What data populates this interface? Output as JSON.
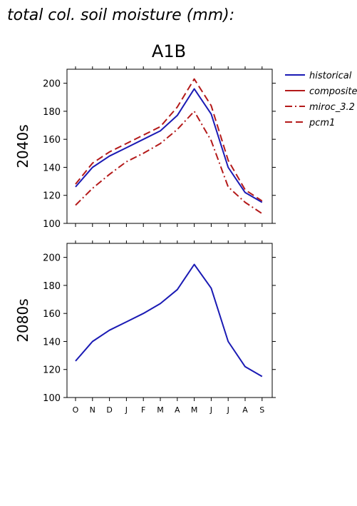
{
  "figure": {
    "title": "total col. soil moisture (mm):",
    "scenario": "A1B"
  },
  "legend": [
    {
      "name": "historical",
      "color": "#1a1ab4",
      "dash": "solid"
    },
    {
      "name": "composite",
      "color": "#b41a1a",
      "dash": "solid"
    },
    {
      "name": "miroc_3.2",
      "color": "#b41a1a",
      "dash": "dashdot"
    },
    {
      "name": "pcm1",
      "color": "#b41a1a",
      "dash": "dash"
    }
  ],
  "chart_data": [
    {
      "type": "line",
      "ylabel": "2040s",
      "ylim": [
        100,
        210
      ],
      "yticks": [
        100,
        120,
        140,
        160,
        180,
        200
      ],
      "categories": [
        "O",
        "N",
        "D",
        "J",
        "F",
        "M",
        "A",
        "M",
        "J",
        "J",
        "A",
        "S"
      ],
      "series": [
        {
          "name": "historical",
          "color": "#1a1ab4",
          "dash": "solid",
          "values": [
            126,
            140,
            148,
            154,
            160,
            166,
            177,
            196,
            178,
            140,
            122,
            115
          ]
        },
        {
          "name": "miroc_3.2",
          "color": "#b41a1a",
          "dash": "dashdot",
          "values": [
            113,
            125,
            135,
            144,
            150,
            157,
            167,
            180,
            159,
            126,
            115,
            107
          ]
        },
        {
          "name": "pcm1",
          "color": "#b41a1a",
          "dash": "dash",
          "values": [
            128,
            143,
            151,
            157,
            163,
            169,
            183,
            203,
            184,
            145,
            124,
            116
          ]
        }
      ]
    },
    {
      "type": "line",
      "ylabel": "2080s",
      "ylim": [
        100,
        210
      ],
      "yticks": [
        100,
        120,
        140,
        160,
        180,
        200
      ],
      "categories": [
        "O",
        "N",
        "D",
        "J",
        "F",
        "M",
        "A",
        "M",
        "J",
        "J",
        "A",
        "S"
      ],
      "series": [
        {
          "name": "historical",
          "color": "#1a1ab4",
          "dash": "solid",
          "values": [
            126,
            140,
            148,
            154,
            160,
            167,
            177,
            195,
            178,
            140,
            122,
            115
          ]
        }
      ]
    }
  ]
}
